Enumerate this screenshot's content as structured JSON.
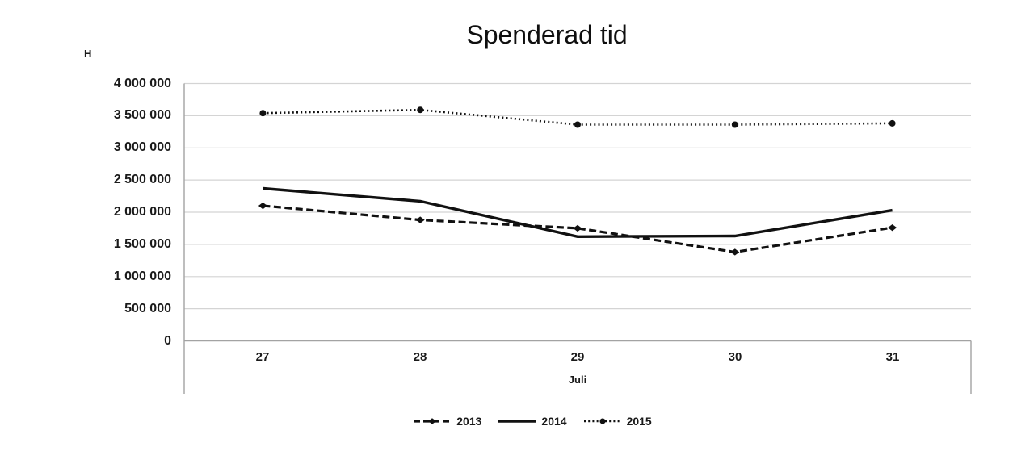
{
  "chart_data": {
    "type": "line",
    "title": "Spenderad tid",
    "y_unit_label": "H",
    "xlabel": "Juli",
    "categories": [
      "27",
      "28",
      "29",
      "30",
      "31"
    ],
    "series": [
      {
        "name": "2013",
        "line_style": "dashed",
        "marker": "diamond",
        "values": [
          2100000,
          1880000,
          1750000,
          1380000,
          1760000
        ]
      },
      {
        "name": "2014",
        "line_style": "solid",
        "marker": "none",
        "values": [
          2370000,
          2170000,
          1620000,
          1630000,
          2030000
        ]
      },
      {
        "name": "2015",
        "line_style": "dotted",
        "marker": "circle",
        "values": [
          3540000,
          3590000,
          3360000,
          3360000,
          3380000
        ]
      }
    ],
    "y_ticks": [
      {
        "value": 0,
        "label": "0"
      },
      {
        "value": 500000,
        "label": "500 000"
      },
      {
        "value": 1000000,
        "label": "1 000 000"
      },
      {
        "value": 1500000,
        "label": "1 500 000"
      },
      {
        "value": 2000000,
        "label": "2 000 000"
      },
      {
        "value": 2500000,
        "label": "2 500 000"
      },
      {
        "value": 3000000,
        "label": "3 000 000"
      },
      {
        "value": 3500000,
        "label": "3 500 000"
      },
      {
        "value": 4000000,
        "label": "4 000 000"
      }
    ],
    "ylim": [
      0,
      4000000
    ],
    "grid": true,
    "legend_position": "bottom",
    "colors": {
      "series_color": "#111111",
      "gridline": "#d4d4d4",
      "axis": "#a3a3a3",
      "text": "#1a1a1a",
      "background": "#ffffff"
    }
  }
}
